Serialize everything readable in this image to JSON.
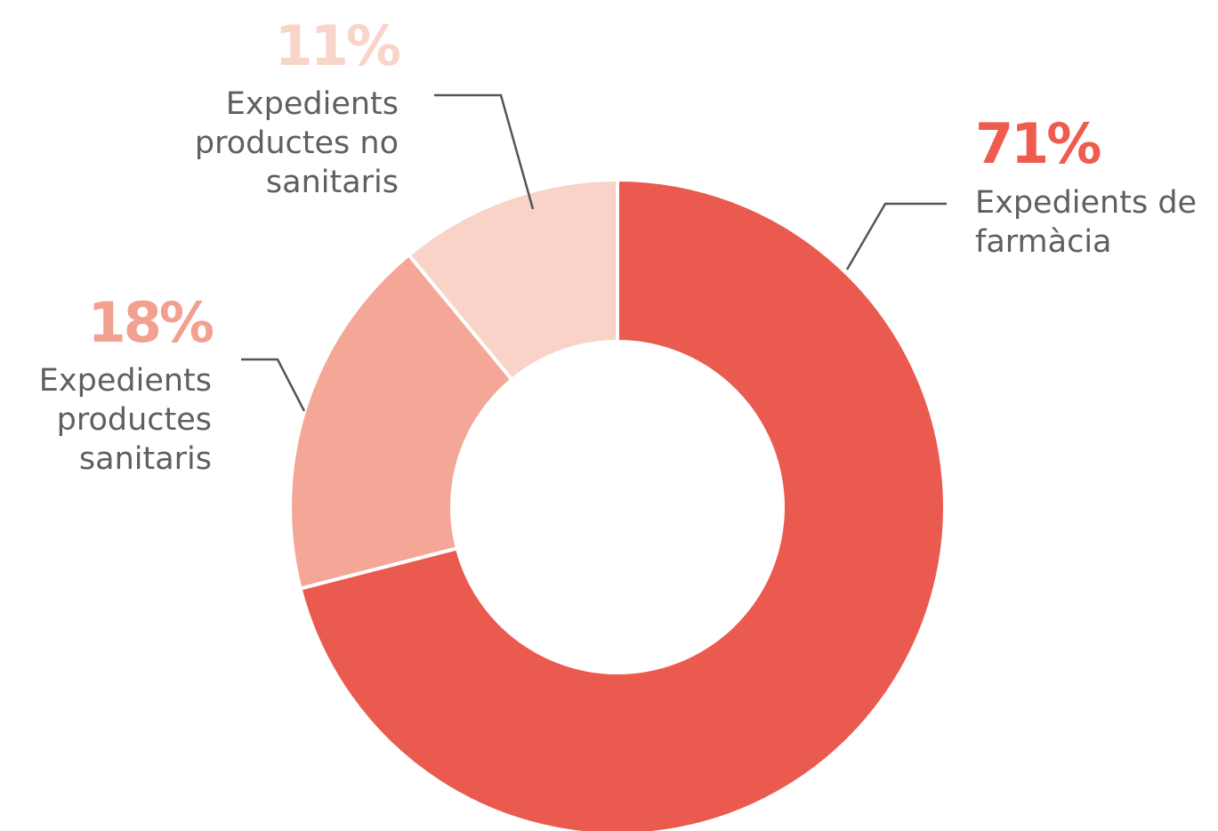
{
  "chart_data": {
    "type": "pie",
    "donut": true,
    "slices": [
      {
        "label_lines": [
          "Expedients de",
          "farmàcia"
        ],
        "value": 71,
        "value_label": "71%",
        "color": "#ea5a4e",
        "label_color": "#ef5b4d"
      },
      {
        "label_lines": [
          "Expedients",
          "productes",
          "sanitaris"
        ],
        "value": 18,
        "value_label": "18%",
        "color": "#f4a796",
        "label_color": "#f2a08f"
      },
      {
        "label_lines": [
          "Expedients",
          "productes no",
          "sanitaris"
        ],
        "value": 11,
        "value_label": "11%",
        "color": "#f9d3c8",
        "label_color": "#f9d4c9"
      }
    ],
    "separator_color": "#ffffff",
    "leader_color": "#555555"
  }
}
